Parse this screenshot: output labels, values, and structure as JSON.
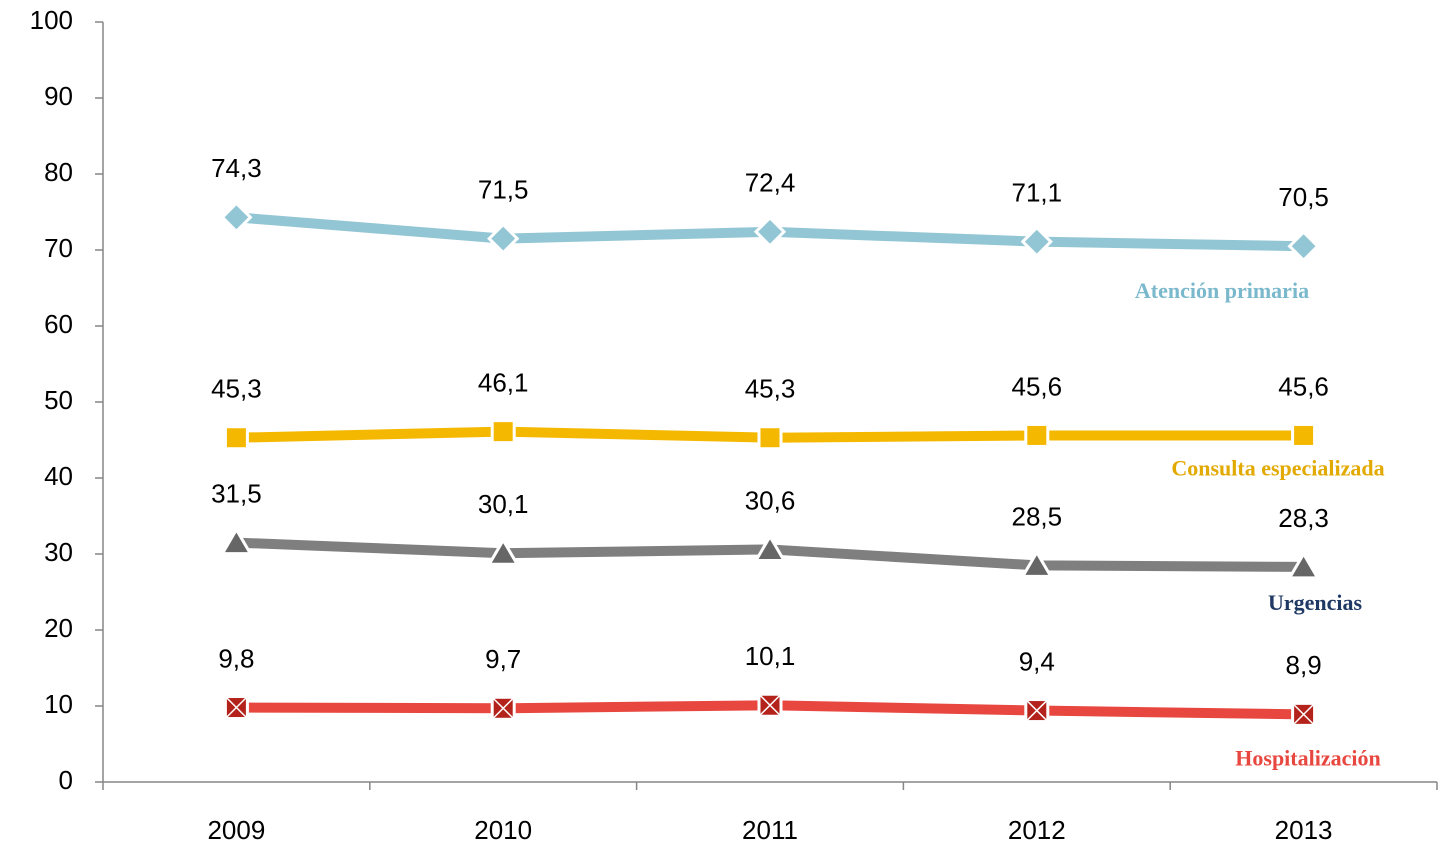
{
  "chart_data": {
    "type": "line",
    "categories": [
      "2009",
      "2010",
      "2011",
      "2012",
      "2013"
    ],
    "ylim": [
      0,
      100
    ],
    "yticks": [
      0,
      10,
      20,
      30,
      40,
      50,
      60,
      70,
      80,
      90,
      100
    ],
    "series": [
      {
        "name": "Atención primaria",
        "color": "#93c6d4",
        "label_color": "#7ab8cc",
        "marker": "diamond",
        "values": [
          74.3,
          71.5,
          72.4,
          71.1,
          70.5
        ],
        "value_labels": [
          "74,3",
          "71,5",
          "72,4",
          "71,1",
          "70,5"
        ]
      },
      {
        "name": "Consulta  especializada",
        "color": "#f5b800",
        "label_color": "#e2a900",
        "marker": "square",
        "values": [
          45.3,
          46.1,
          45.3,
          45.6,
          45.6
        ],
        "value_labels": [
          "45,3",
          "46,1",
          "45,3",
          "45,6",
          "45,6"
        ]
      },
      {
        "name": "Urgencias",
        "color": "#7f7f7f",
        "label_color": "#1f3864",
        "marker": "triangle",
        "values": [
          31.5,
          30.1,
          30.6,
          28.5,
          28.3
        ],
        "value_labels": [
          "31,5",
          "30,1",
          "30,6",
          "28,5",
          "28,3"
        ]
      },
      {
        "name": "Hospitalización",
        "color": "#e8473f",
        "label_color": "#e8473f",
        "marker": "xsquare",
        "values": [
          9.8,
          9.7,
          10.1,
          9.4,
          8.9
        ],
        "value_labels": [
          "9,8",
          "9,7",
          "10,1",
          "9,4",
          "8,9"
        ]
      }
    ]
  }
}
